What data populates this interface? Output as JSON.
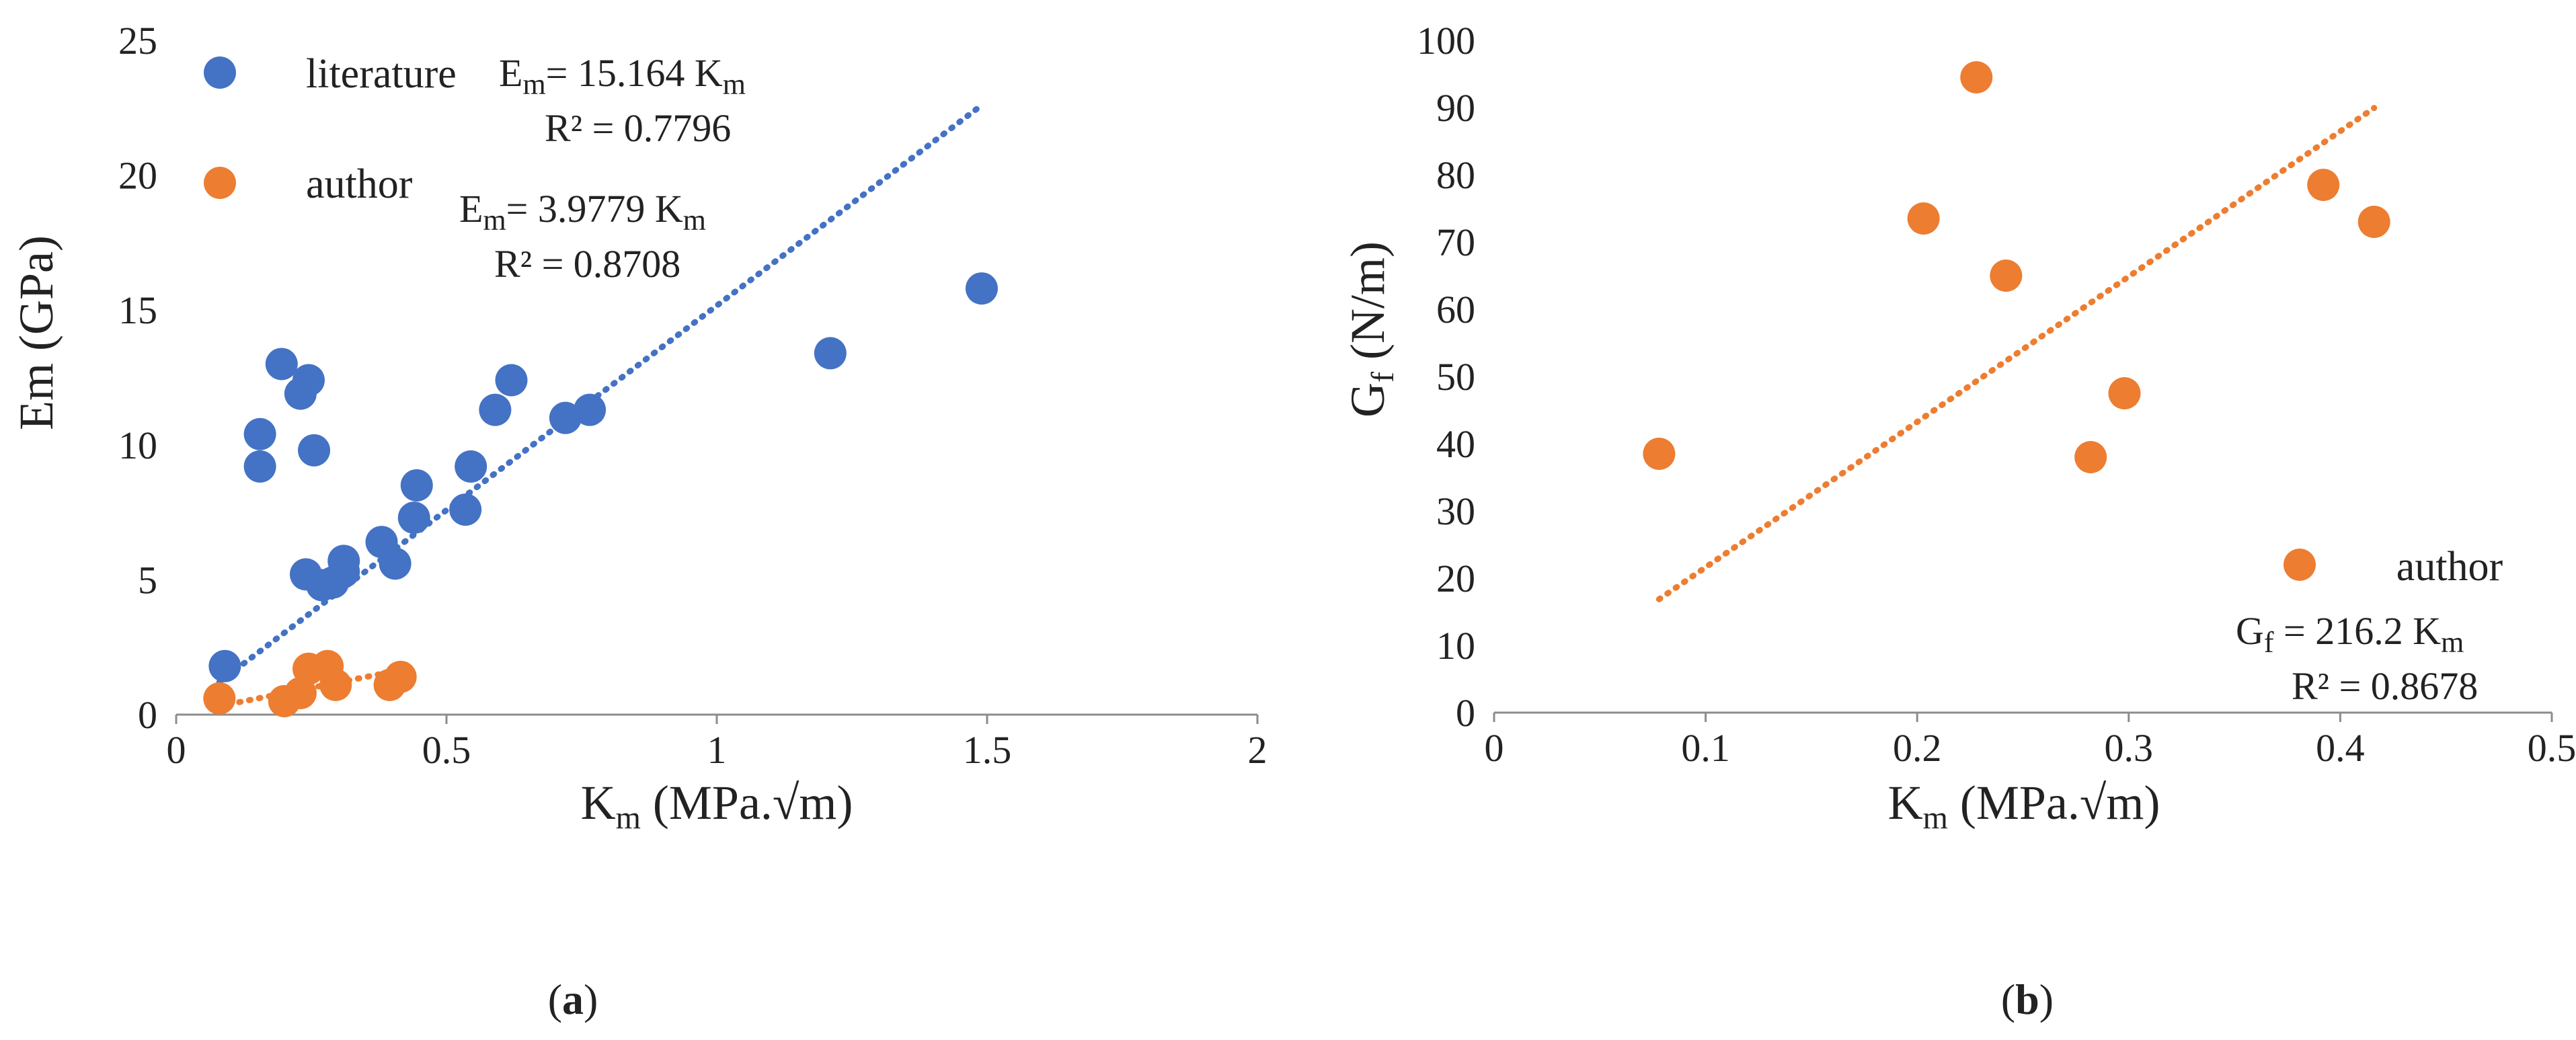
{
  "chart_data": [
    {
      "id": "a",
      "type": "scatter",
      "caption": "a",
      "xlabel": {
        "main": "K",
        "sub": "m",
        "rest": " (MPa.√m)"
      },
      "ylabel": "Em (GPa)",
      "xlim": [
        0,
        2
      ],
      "ylim": [
        0,
        25
      ],
      "xticks": [
        0,
        0.5,
        1,
        1.5,
        2
      ],
      "xtick_labels": [
        "0",
        "0.5",
        "1",
        "1.5",
        "2"
      ],
      "yticks": [
        0,
        5,
        10,
        15,
        20,
        25
      ],
      "ytick_labels": [
        "0",
        "5",
        "10",
        "15",
        "20",
        "25"
      ],
      "grid": false,
      "series": [
        {
          "name": "literature",
          "color": "#4472C4",
          "x": [
            0.09,
            0.155,
            0.155,
            0.195,
            0.23,
            0.245,
            0.255,
            0.24,
            0.27,
            0.29,
            0.31,
            0.31,
            0.38,
            0.405,
            0.44,
            0.445,
            0.535,
            0.545,
            0.59,
            0.62,
            0.72,
            0.765,
            1.21,
            1.49
          ],
          "y": [
            1.8,
            9.2,
            10.4,
            13.0,
            11.9,
            12.4,
            9.8,
            5.2,
            4.8,
            4.9,
            5.3,
            5.7,
            6.4,
            5.6,
            7.3,
            8.5,
            7.6,
            9.2,
            11.3,
            12.4,
            11.0,
            11.3,
            13.4,
            15.8
          ],
          "trend": {
            "slope": 15.164,
            "x_range": [
              0.08,
              1.49
            ]
          },
          "equation": {
            "lhs": "E",
            "lhs_sub": "m",
            "text": "= 15.164 K",
            "k_sub": "m",
            "r2": "R² = 0.7796"
          }
        },
        {
          "name": "author",
          "color": "#ED7D31",
          "x": [
            0.08,
            0.2,
            0.23,
            0.245,
            0.28,
            0.295,
            0.395,
            0.415
          ],
          "y": [
            0.6,
            0.5,
            0.8,
            1.7,
            1.8,
            1.1,
            1.1,
            1.4
          ],
          "trend": {
            "slope": 3.9779,
            "x_range": [
              0.08,
              0.415
            ]
          },
          "equation": {
            "lhs": "E",
            "lhs_sub": "m",
            "text": "= 3.9779 K",
            "k_sub": "m",
            "r2": "R² = 0.8708"
          }
        }
      ]
    },
    {
      "id": "b",
      "type": "scatter",
      "caption": "b",
      "xlabel": {
        "main": "K",
        "sub": "m",
        "rest": " (MPa.√m)"
      },
      "ylabel": {
        "main": "G",
        "sub": "f",
        "rest": " (N/m)"
      },
      "xlim": [
        0,
        0.5
      ],
      "ylim": [
        0,
        100
      ],
      "xticks": [
        0,
        0.1,
        0.2,
        0.3,
        0.4,
        0.5
      ],
      "xtick_labels": [
        "0",
        "0.1",
        "0.2",
        "0.3",
        "0.4",
        "0.5"
      ],
      "yticks": [
        0,
        10,
        20,
        30,
        40,
        50,
        60,
        70,
        80,
        90,
        100
      ],
      "ytick_labels": [
        "0",
        "10",
        "20",
        "30",
        "40",
        "50",
        "60",
        "70",
        "80",
        "90",
        "100"
      ],
      "grid": false,
      "series": [
        {
          "name": "author",
          "color": "#ED7D31",
          "x": [
            0.078,
            0.203,
            0.228,
            0.242,
            0.282,
            0.298,
            0.392,
            0.416
          ],
          "y": [
            38.5,
            73.5,
            94.5,
            65.0,
            38.0,
            47.5,
            78.5,
            73.0
          ],
          "trend": {
            "slope": 216.2,
            "x_range": [
              0.078,
              0.416
            ]
          },
          "equation": {
            "lhs": "G",
            "lhs_sub": "f",
            "text": " = 216.2 K",
            "k_sub": "m",
            "r2": "R² = 0.8678"
          }
        }
      ]
    }
  ]
}
